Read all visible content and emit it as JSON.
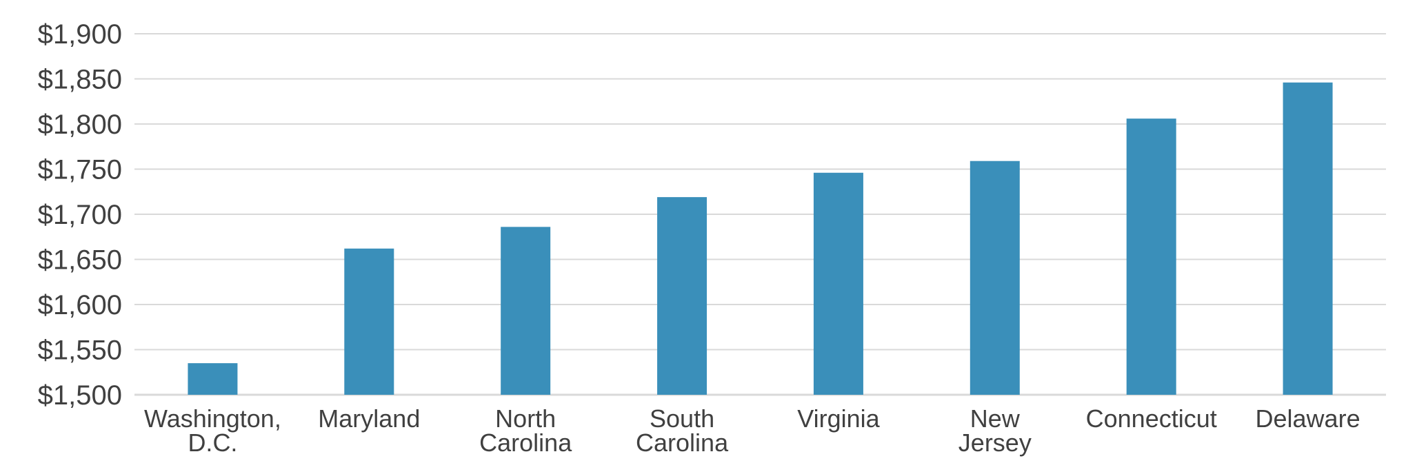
{
  "chart_data": {
    "type": "bar",
    "title": "",
    "xlabel": "",
    "ylabel": "",
    "categories": [
      [
        "Washington,",
        "D.C."
      ],
      [
        "Maryland"
      ],
      [
        "North",
        "Carolina"
      ],
      [
        "South",
        "Carolina"
      ],
      [
        "Virginia"
      ],
      [
        "New",
        "Jersey"
      ],
      [
        "Connecticut"
      ],
      [
        "Delaware"
      ]
    ],
    "values": [
      1535,
      1662,
      1686,
      1719,
      1746,
      1759,
      1806,
      1846
    ],
    "ylim": [
      1500,
      1900
    ],
    "ytick_values": [
      1500,
      1550,
      1600,
      1650,
      1700,
      1750,
      1800,
      1850,
      1900
    ],
    "ytick_labels": [
      "$1,500",
      "$1,550",
      "$1,600",
      "$1,650",
      "$1,700",
      "$1,750",
      "$1,800",
      "$1,850",
      "$1,900"
    ],
    "grid": true,
    "legend": "none",
    "colors": {
      "bar": "#3a8fba",
      "grid": "#d9d9d9",
      "text": "#404040"
    }
  }
}
